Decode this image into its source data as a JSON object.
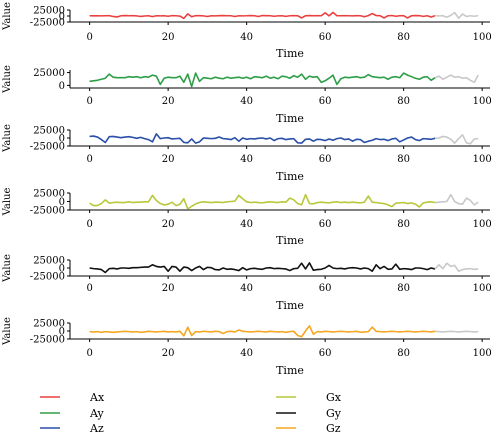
{
  "chart_data": [
    {
      "type": "line",
      "xlabel": "Time",
      "ylabel": "Value",
      "xlim": [
        -5,
        102
      ],
      "ylim": [
        -25000,
        25000
      ],
      "xticks": [
        0,
        20,
        40,
        60,
        80,
        100
      ],
      "yticks": [
        -25000,
        0,
        25000
      ],
      "series": [
        {
          "name": "Ax",
          "color": "#e8413f",
          "values": [
            1000,
            800,
            1000,
            500,
            1000,
            1500,
            -2000,
            -4000,
            1000,
            2000,
            1000,
            1500,
            500,
            -2000,
            0,
            1000,
            -2500,
            1000,
            500,
            1000,
            -1000,
            1500,
            1000,
            -500,
            -10000,
            9000,
            -3000,
            1500,
            1500,
            500,
            -2000,
            1000,
            500,
            1500,
            2000,
            1000,
            1000,
            -2000,
            1000,
            500,
            1000,
            2000,
            1000,
            -2000,
            2000,
            1500,
            1000,
            -1000,
            500,
            1000,
            -1500,
            1000,
            1500,
            1000,
            -8000,
            1000,
            2000,
            1000,
            1500,
            1000,
            13000,
            500,
            15000,
            1000,
            1000,
            1500,
            1000,
            500,
            1500,
            1000,
            -3000,
            1500,
            10000,
            2000,
            1500,
            -8000,
            1000,
            2000,
            -1000,
            1000,
            1500,
            -8000,
            1000,
            2000,
            1500,
            -1500,
            1000,
            -4000,
            1000,
            500,
            1000,
            -5000,
            2500,
            14000,
            -9000,
            8000,
            -2000,
            1000,
            -1000,
            1500
          ]
        }
      ]
    },
    {
      "type": "line",
      "xlabel": "Time",
      "ylabel": "Value",
      "xlim": [
        -5,
        102
      ],
      "ylim": [
        -5000,
        30000
      ],
      "xticks": [
        0,
        20,
        40,
        60,
        80,
        100
      ],
      "yticks": [
        0,
        25000
      ],
      "series": [
        {
          "name": "Ay",
          "color": "#2e9e48",
          "values": [
            8000,
            9000,
            10000,
            12000,
            14000,
            22000,
            16000,
            15000,
            15000,
            15000,
            17000,
            16000,
            17000,
            15000,
            17000,
            16000,
            20000,
            18000,
            2000,
            14000,
            16000,
            15000,
            15000,
            18000,
            6000,
            22000,
            -2000,
            24000,
            8000,
            15000,
            14000,
            13000,
            16000,
            14000,
            13000,
            16000,
            14000,
            15000,
            16000,
            14000,
            16000,
            13000,
            17000,
            16000,
            15000,
            18000,
            14000,
            16000,
            13000,
            18000,
            17000,
            14000,
            19000,
            16000,
            22000,
            12000,
            18000,
            16000,
            17000,
            6000,
            9000,
            14000,
            20000,
            2000,
            13000,
            16000,
            15000,
            16000,
            17000,
            15000,
            16000,
            21000,
            17000,
            16000,
            15000,
            16000,
            12000,
            16000,
            17000,
            15000,
            24000,
            20000,
            17000,
            14000,
            12000,
            16000,
            17000,
            10000,
            15000,
            18000,
            12000,
            16000,
            20000,
            16000,
            17000,
            14000,
            15000,
            10000,
            6000,
            20000
          ]
        }
      ]
    },
    {
      "type": "line",
      "xlabel": "Time",
      "ylabel": "Value",
      "xlim": [
        -5,
        102
      ],
      "ylim": [
        -25000,
        25000
      ],
      "xticks": [
        0,
        20,
        40,
        60,
        80,
        100
      ],
      "yticks": [
        -25000,
        0,
        25000
      ],
      "series": [
        {
          "name": "Az",
          "color": "#2a4fa8",
          "values": [
            5000,
            6000,
            3000,
            -5000,
            -14000,
            4000,
            5000,
            3000,
            1000,
            3000,
            4000,
            2000,
            -1000,
            2000,
            -2000,
            -5000,
            -12000,
            13000,
            -2000,
            0,
            1000,
            -3000,
            -2000,
            -1000,
            -14000,
            -15000,
            -3000,
            -16000,
            -12000,
            0,
            -1000,
            -2000,
            -1000,
            3000,
            -2000,
            -3000,
            -5000,
            1000,
            -10000,
            0,
            -4000,
            -2000,
            -3000,
            -1000,
            0,
            -3000,
            0,
            -8000,
            -2000,
            -1000,
            -5000,
            -3000,
            -2000,
            -15000,
            -16000,
            -4000,
            -3000,
            -10000,
            -4000,
            -5000,
            -8000,
            -3000,
            -7000,
            -2000,
            0,
            -5000,
            -3000,
            -10000,
            -4000,
            -5000,
            -14000,
            -10000,
            -7000,
            -2000,
            -5000,
            -4000,
            -8000,
            -3000,
            -1000,
            -12000,
            -6000,
            0,
            3000,
            -5000,
            -8000,
            -2000,
            -3000,
            -4000,
            -1000,
            0,
            5000,
            3000,
            -4000,
            -16000,
            -2000,
            10000,
            -15000,
            -18000,
            -3000,
            -2000
          ]
        }
      ]
    },
    {
      "type": "line",
      "xlabel": "Time",
      "ylabel": "Value",
      "xlim": [
        -5,
        102
      ],
      "ylim": [
        -25000,
        25000
      ],
      "xticks": [
        0,
        20,
        40,
        60,
        80,
        100
      ],
      "yticks": [
        -25000,
        0,
        25000
      ],
      "series": [
        {
          "name": "Gx",
          "color": "#b8c83a",
          "values": [
            -5000,
            -12000,
            -12000,
            -6000,
            5000,
            -5000,
            -3000,
            -2000,
            -3000,
            -3000,
            -1000,
            -3000,
            -2000,
            -2000,
            -1000,
            -1000,
            18000,
            3000,
            -6000,
            -10000,
            -8000,
            -2000,
            -12000,
            -8000,
            8000,
            -22000,
            -14000,
            -7000,
            -3000,
            -1000,
            -2000,
            -3000,
            -2000,
            -2000,
            -3000,
            -1000,
            0,
            1000,
            18000,
            8000,
            -1000,
            -3000,
            -2000,
            -3000,
            -4000,
            -2000,
            -1000,
            -2000,
            -3000,
            -1000,
            -2000,
            10000,
            5000,
            -6000,
            -10000,
            20000,
            -6000,
            -7000,
            -3000,
            -2000,
            -3000,
            -4000,
            -2000,
            -1000,
            -3000,
            -2000,
            -3000,
            -2000,
            -3000,
            -4000,
            -2000,
            16000,
            -2000,
            -3000,
            -5000,
            -6000,
            -10000,
            -15000,
            -5000,
            -4000,
            -3000,
            -6000,
            -4000,
            -8000,
            -16000,
            -4000,
            -2000,
            -1000,
            -3000,
            -2000,
            -1000,
            0,
            20000,
            0,
            -6000,
            -8000,
            10000,
            3000,
            -10000,
            -2000
          ]
        }
      ]
    },
    {
      "type": "line",
      "xlabel": "Time",
      "ylabel": "Value",
      "xlim": [
        -5,
        102
      ],
      "ylim": [
        -25000,
        25000
      ],
      "xticks": [
        0,
        20,
        40,
        60,
        80,
        100
      ],
      "yticks": [
        -25000,
        0,
        25000
      ],
      "series": [
        {
          "name": "Gy",
          "color": "#111111",
          "values": [
            0,
            -2000,
            -3000,
            -5000,
            -14000,
            -2000,
            -1000,
            -3000,
            0,
            0,
            -1000,
            1000,
            1000,
            2000,
            3000,
            3000,
            10000,
            5000,
            3000,
            5000,
            -10000,
            5000,
            3000,
            -10000,
            3000,
            1000,
            -8000,
            0,
            5000,
            -5000,
            2000,
            1000,
            -5000,
            -6000,
            0,
            -4000,
            -3000,
            -5000,
            -8000,
            1000,
            -6000,
            -2000,
            -1000,
            -3000,
            -4000,
            0,
            1000,
            -2000,
            -1000,
            -2000,
            -3000,
            -8000,
            -2000,
            -1000,
            15000,
            -3000,
            16000,
            -7000,
            -5000,
            -4000,
            0,
            8000,
            0,
            -2000,
            -1000,
            -3000,
            0,
            1000,
            0,
            -3000,
            0,
            -2000,
            -10000,
            10000,
            -2000,
            5000,
            -4000,
            -3000,
            12000,
            -4000,
            -2000,
            -3000,
            -5000,
            0,
            0,
            -2000,
            -5000,
            0,
            -3000,
            10000,
            -2000,
            15000,
            5000,
            8000,
            -10000,
            -5000,
            -3000,
            -2000,
            -4000,
            -3000
          ]
        }
      ]
    },
    {
      "type": "line",
      "xlabel": "Time",
      "ylabel": "Value",
      "xlim": [
        -5,
        102
      ],
      "ylim": [
        -25000,
        25000
      ],
      "xticks": [
        0,
        20,
        40,
        60,
        80,
        100
      ],
      "yticks": [
        -25000,
        0,
        25000
      ],
      "series": [
        {
          "name": "Gz",
          "color": "#f5a623",
          "values": [
            -2000,
            -3000,
            -2000,
            -4000,
            -2000,
            -3000,
            -4000,
            -3000,
            -2000,
            -1000,
            -2000,
            -3000,
            -2000,
            -4000,
            -3000,
            -1000,
            -2000,
            -3000,
            -2000,
            -1000,
            -3000,
            -2000,
            -3000,
            -1000,
            -15000,
            12000,
            -14000,
            -2000,
            -3000,
            -1000,
            -2000,
            -3000,
            -1000,
            -2000,
            -8000,
            -2000,
            -1000,
            -3000,
            3000,
            -1000,
            -2000,
            -3000,
            -2000,
            -1000,
            -2000,
            -3000,
            -1000,
            -2000,
            -3000,
            -2000,
            -4000,
            -2000,
            -1000,
            -14000,
            -18000,
            0,
            16000,
            -10000,
            -2000,
            -3000,
            -1000,
            -2000,
            -3000,
            -2000,
            -1000,
            -2000,
            -3000,
            -2000,
            -1000,
            -4000,
            -3000,
            -2000,
            12000,
            -1000,
            -2000,
            -3000,
            -2000,
            -1000,
            -2000,
            -3000,
            -2000,
            -1000,
            -2000,
            -3000,
            -2000,
            -1000,
            -2000,
            -3000,
            -1000,
            -2000,
            -3000,
            -2000,
            -1000,
            -2000,
            -3000,
            -2000,
            -1000,
            -2000,
            -3000,
            -2000
          ]
        }
      ]
    }
  ],
  "legend": [
    {
      "label": "Ax",
      "color": "#e8413f"
    },
    {
      "label": "Ay",
      "color": "#2e9e48"
    },
    {
      "label": "Az",
      "color": "#2a4fa8"
    },
    {
      "label": "Gx",
      "color": "#b8c83a"
    },
    {
      "label": "Gy",
      "color": "#111111"
    },
    {
      "label": "Gz",
      "color": "#f5a623"
    }
  ],
  "highlight_from_index": 88,
  "highlight_color": "#c8c8c8"
}
